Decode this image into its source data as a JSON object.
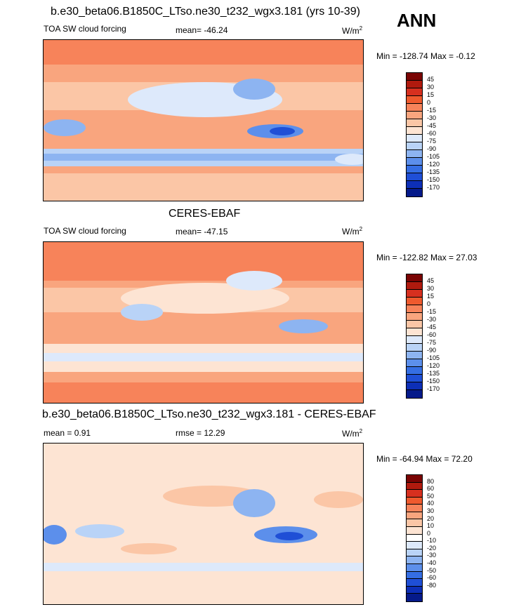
{
  "season": "ANN",
  "panels": [
    {
      "title": "b.e30_beta06.B1850C_LTso.ne30_t232_wgx3.181 (yrs 10-39)",
      "left_label": "TOA SW cloud forcing",
      "stat_label": "mean= -46.24",
      "units": "W/m",
      "units_sup": "2",
      "minmax": "Min = -128.74 Max =  -0.12",
      "colorbar": {
        "colors": [
          "#7a0403",
          "#b01a0e",
          "#d7301f",
          "#ef5a2e",
          "#f7835a",
          "#f9a57e",
          "#fbc6a6",
          "#fde4d3",
          "#dde9fb",
          "#b9d3f7",
          "#8db4f1",
          "#5c8feb",
          "#356ee3",
          "#1f4fd6",
          "#0d2fb7",
          "#051a8a"
        ],
        "labels": [
          "45",
          "30",
          "15",
          "0",
          "-15",
          "-30",
          "-45",
          "-60",
          "-75",
          "-90",
          "-105",
          "-120",
          "-135",
          "-150",
          "-170"
        ]
      }
    },
    {
      "title": "CERES-EBAF",
      "left_label": "TOA SW cloud forcing",
      "stat_label": "mean= -47.15",
      "units": "W/m",
      "units_sup": "2",
      "minmax": "Min = -122.82 Max =  27.03",
      "colorbar": {
        "colors": [
          "#7a0403",
          "#b01a0e",
          "#d7301f",
          "#ef5a2e",
          "#f7835a",
          "#f9a57e",
          "#fbc6a6",
          "#fde4d3",
          "#dde9fb",
          "#b9d3f7",
          "#8db4f1",
          "#5c8feb",
          "#356ee3",
          "#1f4fd6",
          "#0d2fb7",
          "#051a8a"
        ],
        "labels": [
          "45",
          "30",
          "15",
          "0",
          "-15",
          "-30",
          "-45",
          "-60",
          "-75",
          "-90",
          "-105",
          "-120",
          "-135",
          "-150",
          "-170"
        ]
      }
    },
    {
      "title": "b.e30_beta06.B1850C_LTso.ne30_t232_wgx3.181 - CERES-EBAF",
      "left_label": "mean =   0.91",
      "stat_label": "rmse =  12.29",
      "units": "W/m",
      "units_sup": "2",
      "minmax": "Min = -64.94 Max =  72.20",
      "colorbar": {
        "colors": [
          "#7a0403",
          "#b01a0e",
          "#d7301f",
          "#ef5a2e",
          "#f7835a",
          "#f9a57e",
          "#fbc6a6",
          "#fde4d3",
          "#ffffff",
          "#dde9fb",
          "#b9d3f7",
          "#8db4f1",
          "#5c8feb",
          "#356ee3",
          "#1f4fd6",
          "#0d2fb7",
          "#051a8a"
        ],
        "labels": [
          "80",
          "60",
          "50",
          "40",
          "30",
          "20",
          "10",
          "0",
          "-10",
          "-20",
          "-30",
          "-40",
          "-50",
          "-60",
          "-80"
        ]
      }
    }
  ]
}
